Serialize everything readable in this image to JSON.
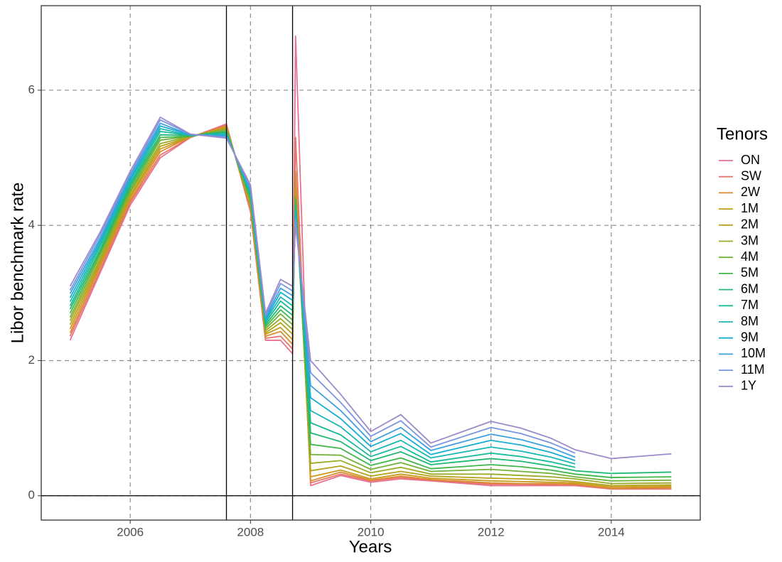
{
  "chart_data": {
    "type": "line",
    "x_label": "Years",
    "y_label": "Libor benchmark rate",
    "legend_title": "Tenors",
    "xlim": [
      2004.52,
      2015.48
    ],
    "ylim": [
      -0.36,
      7.25
    ],
    "xticks": [
      2006,
      2008,
      2010,
      2012,
      2014
    ],
    "yticks": [
      0,
      2,
      4,
      6
    ],
    "grid": true,
    "legend": "right",
    "vlines": [
      2007.6,
      2008.7
    ],
    "hline": 0,
    "x": [
      2005.0,
      2005.5,
      2006.0,
      2006.5,
      2007.0,
      2007.6,
      2008.0,
      2008.25,
      2008.5,
      2008.7,
      2008.75,
      2009.0,
      2009.5,
      2010.0,
      2010.5,
      2011.0,
      2012.0,
      2012.5,
      2013.0,
      2013.4,
      2014.0,
      2015.0
    ],
    "series": [
      {
        "name": "ON",
        "color": "#E8718D",
        "values": [
          2.3,
          3.3,
          4.3,
          5.0,
          5.3,
          5.5,
          4.2,
          2.3,
          2.3,
          2.1,
          6.8,
          0.15,
          0.3,
          0.2,
          0.25,
          0.22,
          0.15,
          0.15,
          0.15,
          0.15,
          0.1,
          0.1
        ]
      },
      {
        "name": "SW",
        "color": "#E7756A",
        "values": [
          2.36,
          3.34,
          4.34,
          5.04,
          5.3,
          5.48,
          4.23,
          2.33,
          2.36,
          2.17,
          5.3,
          0.19,
          0.32,
          0.22,
          0.27,
          0.23,
          0.17,
          0.17,
          0.16,
          0.16,
          0.1,
          0.1
        ]
      },
      {
        "name": "2W",
        "color": "#D98B2B",
        "values": [
          2.41,
          3.39,
          4.37,
          5.09,
          5.31,
          5.47,
          4.26,
          2.36,
          2.43,
          2.24,
          4.8,
          0.22,
          0.35,
          0.23,
          0.29,
          0.24,
          0.19,
          0.18,
          0.18,
          0.17,
          0.11,
          0.12
        ]
      },
      {
        "name": "1M",
        "color": "#C99A1E",
        "values": [
          2.47,
          3.43,
          4.41,
          5.13,
          5.31,
          5.45,
          4.29,
          2.39,
          2.49,
          2.31,
          4.6,
          0.28,
          0.38,
          0.25,
          0.32,
          0.26,
          0.22,
          0.21,
          0.2,
          0.19,
          0.13,
          0.14
        ]
      },
      {
        "name": "2M",
        "color": "#B5A21A",
        "values": [
          2.53,
          3.47,
          4.44,
          5.17,
          5.31,
          5.44,
          4.31,
          2.41,
          2.56,
          2.39,
          4.5,
          0.37,
          0.44,
          0.29,
          0.36,
          0.29,
          0.26,
          0.25,
          0.23,
          0.21,
          0.15,
          0.16
        ]
      },
      {
        "name": "3M",
        "color": "#9AAB27",
        "values": [
          2.59,
          3.51,
          4.48,
          5.21,
          5.32,
          5.42,
          4.34,
          2.44,
          2.62,
          2.46,
          4.4,
          0.48,
          0.52,
          0.34,
          0.42,
          0.32,
          0.32,
          0.3,
          0.28,
          0.25,
          0.18,
          0.19
        ]
      },
      {
        "name": "4M",
        "color": "#73B239",
        "values": [
          2.64,
          3.56,
          4.51,
          5.26,
          5.32,
          5.41,
          4.37,
          2.47,
          2.69,
          2.53,
          4.4,
          0.61,
          0.6,
          0.39,
          0.49,
          0.36,
          0.39,
          0.36,
          0.33,
          0.28,
          0.22,
          0.23
        ]
      },
      {
        "name": "5M",
        "color": "#3FB74A",
        "values": [
          2.7,
          3.6,
          4.55,
          5.3,
          5.32,
          5.39,
          4.4,
          2.5,
          2.75,
          2.6,
          4.4,
          0.76,
          0.7,
          0.45,
          0.56,
          0.4,
          0.46,
          0.43,
          0.38,
          0.32,
          0.27,
          0.28
        ]
      },
      {
        "name": "6M",
        "color": "#22B874",
        "values": [
          2.76,
          3.64,
          4.59,
          5.34,
          5.33,
          5.38,
          4.43,
          2.53,
          2.81,
          2.67,
          4.3,
          0.93,
          0.8,
          0.52,
          0.65,
          0.46,
          0.55,
          0.51,
          0.44,
          0.37,
          0.33,
          0.35
        ]
      },
      {
        "name": "7M",
        "color": "#1BBA98",
        "values": [
          2.81,
          3.69,
          4.62,
          5.39,
          5.33,
          5.36,
          4.46,
          2.56,
          2.88,
          2.74,
          4.3,
          1.08,
          0.9,
          0.58,
          0.73,
          0.5,
          0.63,
          0.58,
          0.5,
          0.42,
          null,
          null
        ]
      },
      {
        "name": "8M",
        "color": "#1CB7B5",
        "values": [
          2.87,
          3.73,
          4.66,
          5.43,
          5.33,
          5.35,
          4.49,
          2.59,
          2.94,
          2.81,
          4.2,
          1.26,
          1.02,
          0.65,
          0.82,
          0.56,
          0.72,
          0.66,
          0.57,
          0.47,
          null,
          null
        ]
      },
      {
        "name": "9M",
        "color": "#1AADD3",
        "values": [
          2.93,
          3.77,
          4.69,
          5.47,
          5.34,
          5.33,
          4.51,
          2.61,
          3.01,
          2.89,
          4.2,
          1.45,
          1.14,
          0.73,
          0.92,
          0.61,
          0.82,
          0.75,
          0.64,
          0.52,
          null,
          null
        ]
      },
      {
        "name": "10M",
        "color": "#3FA0E0",
        "values": [
          2.99,
          3.81,
          4.73,
          5.51,
          5.34,
          5.32,
          4.54,
          2.64,
          3.07,
          2.96,
          4.1,
          1.63,
          1.26,
          0.8,
          1.01,
          0.67,
          0.91,
          0.83,
          0.71,
          0.57,
          null,
          null
        ]
      },
      {
        "name": "11M",
        "color": "#7A95E0",
        "values": [
          3.04,
          3.86,
          4.76,
          5.56,
          5.35,
          5.3,
          4.57,
          2.67,
          3.14,
          3.03,
          4.1,
          1.82,
          1.38,
          0.88,
          1.11,
          0.72,
          1.01,
          0.92,
          0.78,
          0.63,
          null,
          null
        ]
      },
      {
        "name": "1Y",
        "color": "#9E8ACB",
        "values": [
          3.1,
          3.9,
          4.8,
          5.6,
          5.35,
          5.29,
          4.6,
          2.7,
          3.2,
          3.1,
          4.0,
          2.0,
          1.5,
          0.95,
          1.2,
          0.78,
          1.1,
          1.0,
          0.85,
          0.68,
          0.55,
          0.62
        ]
      }
    ]
  }
}
